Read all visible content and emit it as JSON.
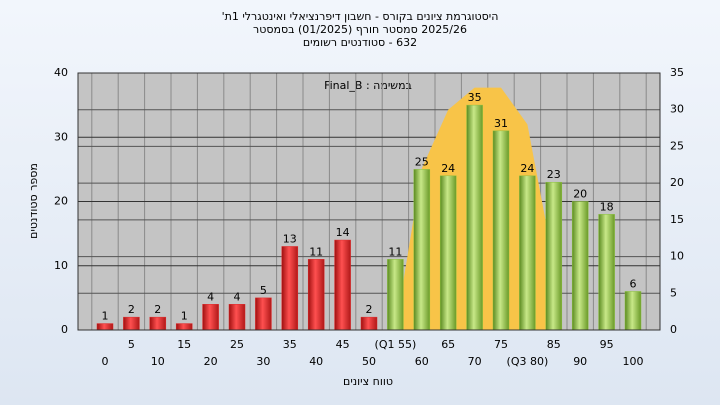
{
  "chart_data": {
    "type": "bar",
    "title": [
      "היסטוגרמת ציונים בקורס - חשבון דיפרנציאלי ואינטגרלי 1ת'",
      "2025/26 סמסטר חורף  (01/2025)  בסמסטר",
      "632 - סטודנטים רשומים"
    ],
    "annotation": "במשימה : Final_B",
    "x_label": "טווח ציונים",
    "y_label": "מספר סטודנטים",
    "categories": [
      "0",
      "5",
      "10",
      "15",
      "20",
      "25",
      "30",
      "35",
      "40",
      "45",
      "50",
      "(Q1 55)",
      "60",
      "65",
      "70",
      "75",
      "(Q3 80)",
      "85",
      "90",
      "95",
      "100"
    ],
    "values": [
      1,
      2,
      2,
      1,
      4,
      4,
      5,
      13,
      11,
      14,
      2,
      11,
      25,
      24,
      35,
      31,
      24,
      23,
      20,
      18,
      6
    ],
    "colors": [
      "#e02828",
      "#e02828",
      "#e02828",
      "#e02828",
      "#e02828",
      "#e02828",
      "#e02828",
      "#e02828",
      "#e02828",
      "#e02828",
      "#e02828",
      "#8cc040",
      "#8cc040",
      "#8cc040",
      "#8cc040",
      "#8cc040",
      "#8cc040",
      "#8cc040",
      "#8cc040",
      "#8cc040",
      "#8cc040"
    ],
    "curve": {
      "color": "#f8c448",
      "axis": "y2",
      "values": [
        null,
        null,
        null,
        null,
        null,
        null,
        null,
        null,
        null,
        null,
        null,
        0,
        22,
        30,
        33,
        33,
        28,
        9,
        null,
        null,
        null
      ]
    },
    "ylim": [
      0,
      40
    ],
    "yticks": [
      0,
      10,
      20,
      30,
      40
    ],
    "y2lim": [
      0,
      35
    ],
    "y2ticks": [
      0,
      5,
      10,
      15,
      20,
      25,
      30,
      35
    ],
    "grid": true
  }
}
